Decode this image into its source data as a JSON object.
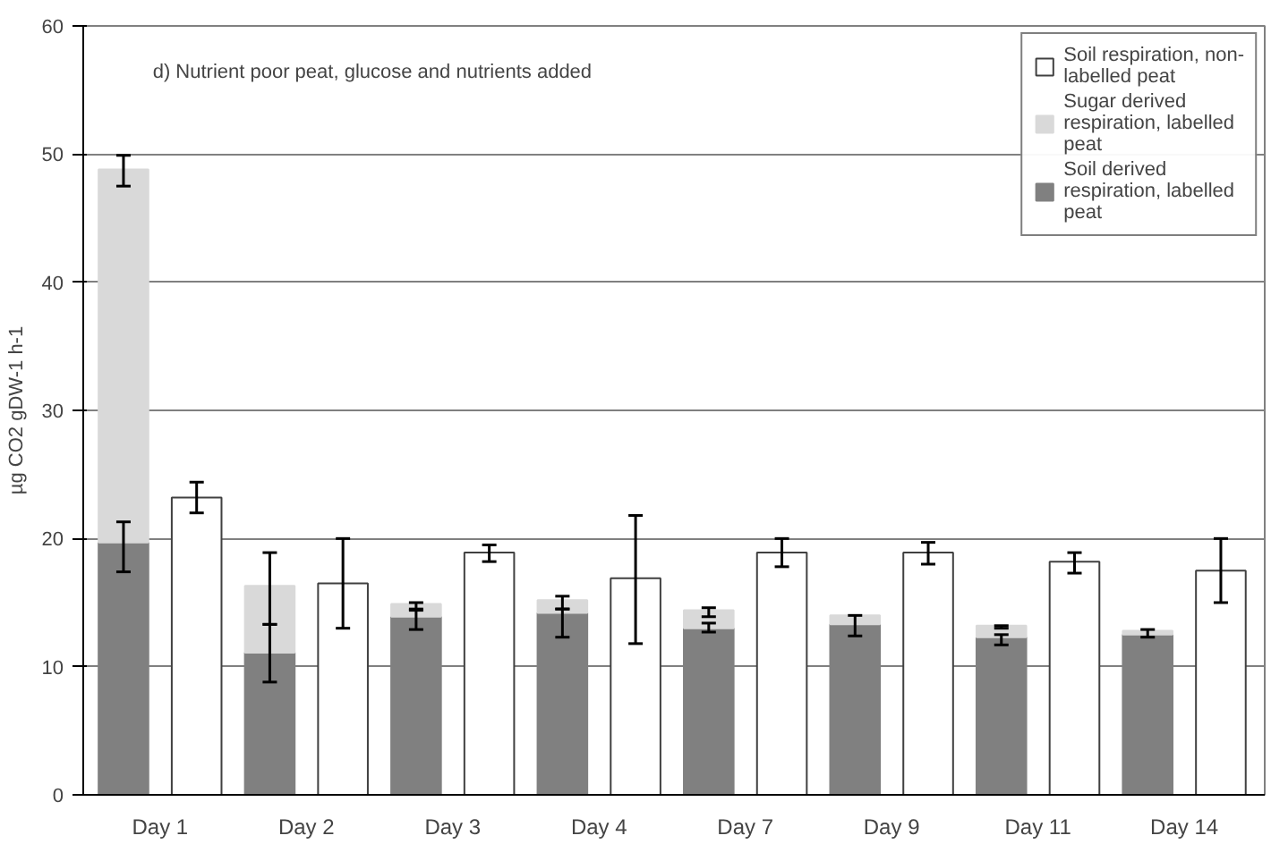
{
  "chart_data": {
    "type": "bar",
    "stacked": true,
    "title": "d) Nutrient poor peat, glucose and nutrients added",
    "ylabel": "µg CO2 gDW-1 h-1",
    "categories": [
      "Day 1",
      null,
      "Day 2",
      null,
      "Day 3",
      null,
      "Day 4",
      null,
      "Day 7",
      null,
      "Day 9",
      null,
      "Day 11",
      null,
      "Day 14",
      null
    ],
    "ylim": [
      0,
      60
    ],
    "yticks": [
      0,
      10,
      20,
      30,
      40,
      50,
      60
    ],
    "grid": "y",
    "legend": "top right",
    "series": [
      {
        "name": "Soil derived respiration, labelled peat",
        "color": "#808080",
        "values": [
          19.7,
          null,
          11.1,
          null,
          13.9,
          null,
          14.2,
          null,
          13.0,
          null,
          13.3,
          null,
          12.3,
          null,
          12.5,
          null
        ],
        "errors": [
          [
            17.4,
            21.3
          ],
          null,
          [
            8.8,
            13.3
          ],
          null,
          [
            12.9,
            14.5
          ],
          null,
          [
            12.3,
            14.5
          ],
          null,
          [
            12.7,
            13.4
          ],
          null,
          [
            12.4,
            14.0
          ],
          null,
          [
            11.7,
            12.5
          ],
          null,
          [
            12.3,
            12.9
          ],
          null
        ]
      },
      {
        "name": "Sugar derived respiration, labelled peat",
        "color": "#d9d9d9",
        "values": [
          29.1,
          null,
          5.2,
          null,
          1.0,
          null,
          1.0,
          null,
          1.4,
          null,
          0.7,
          null,
          0.9,
          null,
          0.3,
          null
        ],
        "errors": [
          [
            47.5,
            49.9
          ],
          null,
          [
            13.3,
            18.9
          ],
          null,
          [
            14.4,
            15.0
          ],
          null,
          [
            14.5,
            15.5
          ],
          null,
          [
            13.9,
            14.6
          ],
          null,
          null,
          null,
          [
            13.0,
            13.2
          ],
          null,
          null,
          null
        ]
      },
      {
        "name": "Soil respiration, non-labelled peat",
        "color": "#ffffff",
        "values": [
          null,
          23.2,
          null,
          16.5,
          null,
          18.9,
          null,
          16.9,
          null,
          18.9,
          null,
          18.9,
          null,
          18.2,
          null,
          17.5
        ],
        "errors": [
          null,
          [
            22.0,
            24.4
          ],
          null,
          [
            13.0,
            20.0
          ],
          null,
          [
            18.2,
            19.5
          ],
          null,
          [
            11.8,
            21.8
          ],
          null,
          [
            17.8,
            20.0
          ],
          null,
          [
            18.0,
            19.7
          ],
          null,
          [
            17.3,
            18.9
          ],
          null,
          [
            15.0,
            20.0
          ]
        ]
      }
    ]
  }
}
